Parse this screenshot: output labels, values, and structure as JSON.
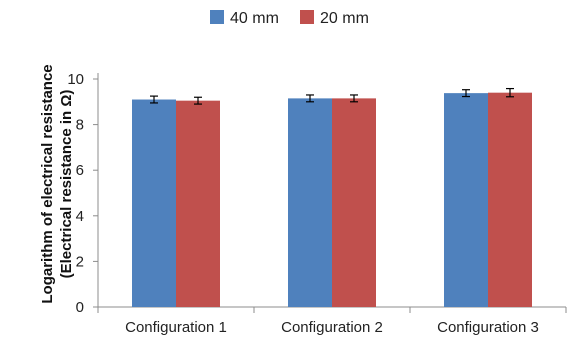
{
  "chart_data": {
    "type": "bar",
    "title": "",
    "xlabel": "",
    "ylabel_line1": "Logarithm of electrical resistance",
    "ylabel_line2": "(Electrical resistance in Ω)",
    "categories": [
      "Configuration 1",
      "Configuration 2",
      "Configuration 3"
    ],
    "series": [
      {
        "name": "40 mm",
        "color": "#4F81BD",
        "values": [
          9.1,
          9.15,
          9.38
        ],
        "error": [
          0.15,
          0.15,
          0.15
        ]
      },
      {
        "name": "20 mm",
        "color": "#C0504D",
        "values": [
          9.05,
          9.15,
          9.4
        ],
        "error": [
          0.15,
          0.15,
          0.18
        ]
      }
    ],
    "ylim": [
      0,
      10
    ],
    "yticks": [
      0,
      2,
      4,
      6,
      8,
      10
    ],
    "legend_position": "top-center",
    "grid": false
  }
}
